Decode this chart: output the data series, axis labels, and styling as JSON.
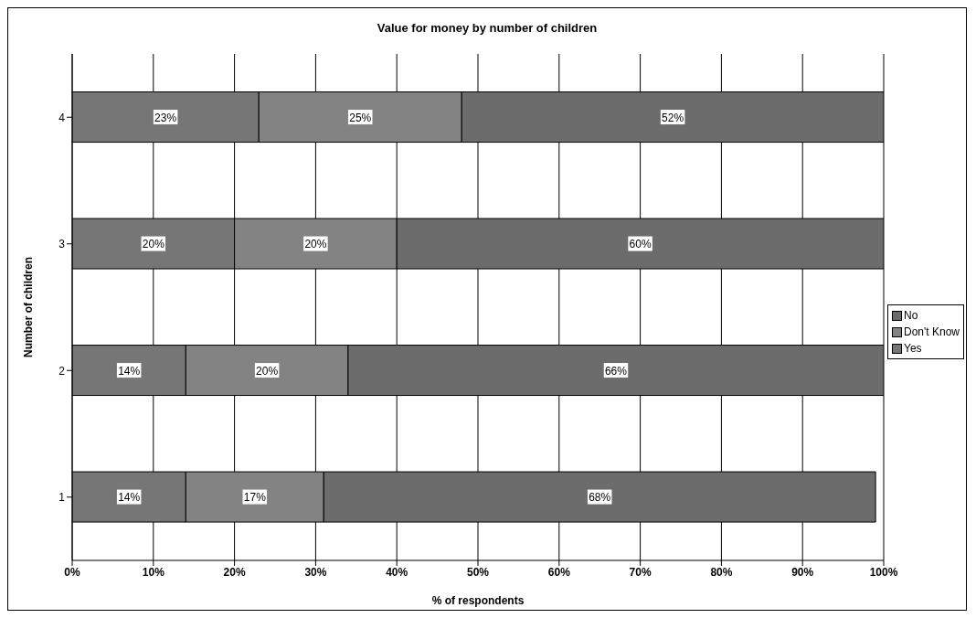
{
  "chart_data": {
    "type": "bar",
    "orientation": "horizontal",
    "stacked": true,
    "title": "Value for money by number of children",
    "xlabel": "% of respondents",
    "ylabel": "Number of children",
    "categories": [
      "4",
      "3",
      "2",
      "1"
    ],
    "series": [
      {
        "name": "Yes",
        "color": "#767676",
        "values": [
          23,
          20,
          14,
          14
        ],
        "value_labels": [
          "23%",
          "20%",
          "14%",
          "14%"
        ]
      },
      {
        "name": "Don't Know",
        "color": "#838383",
        "values": [
          25,
          20,
          20,
          17
        ],
        "value_labels": [
          "25%",
          "20%",
          "20%",
          "17%"
        ]
      },
      {
        "name": "No",
        "color": "#6c6c6c",
        "values": [
          52,
          60,
          66,
          68
        ],
        "value_labels": [
          "52%",
          "60%",
          "66%",
          "68%"
        ]
      }
    ],
    "xlim": [
      0,
      100
    ],
    "xticks": [
      {
        "value": 0,
        "label": "0%"
      },
      {
        "value": 10,
        "label": "10%"
      },
      {
        "value": 20,
        "label": "20%"
      },
      {
        "value": 30,
        "label": "30%"
      },
      {
        "value": 40,
        "label": "40%"
      },
      {
        "value": 50,
        "label": "50%"
      },
      {
        "value": 60,
        "label": "60%"
      },
      {
        "value": 70,
        "label": "70%"
      },
      {
        "value": 80,
        "label": "80%"
      },
      {
        "value": 90,
        "label": "90%"
      },
      {
        "value": 100,
        "label": "100%"
      }
    ],
    "grid": "x",
    "legend": "right"
  }
}
